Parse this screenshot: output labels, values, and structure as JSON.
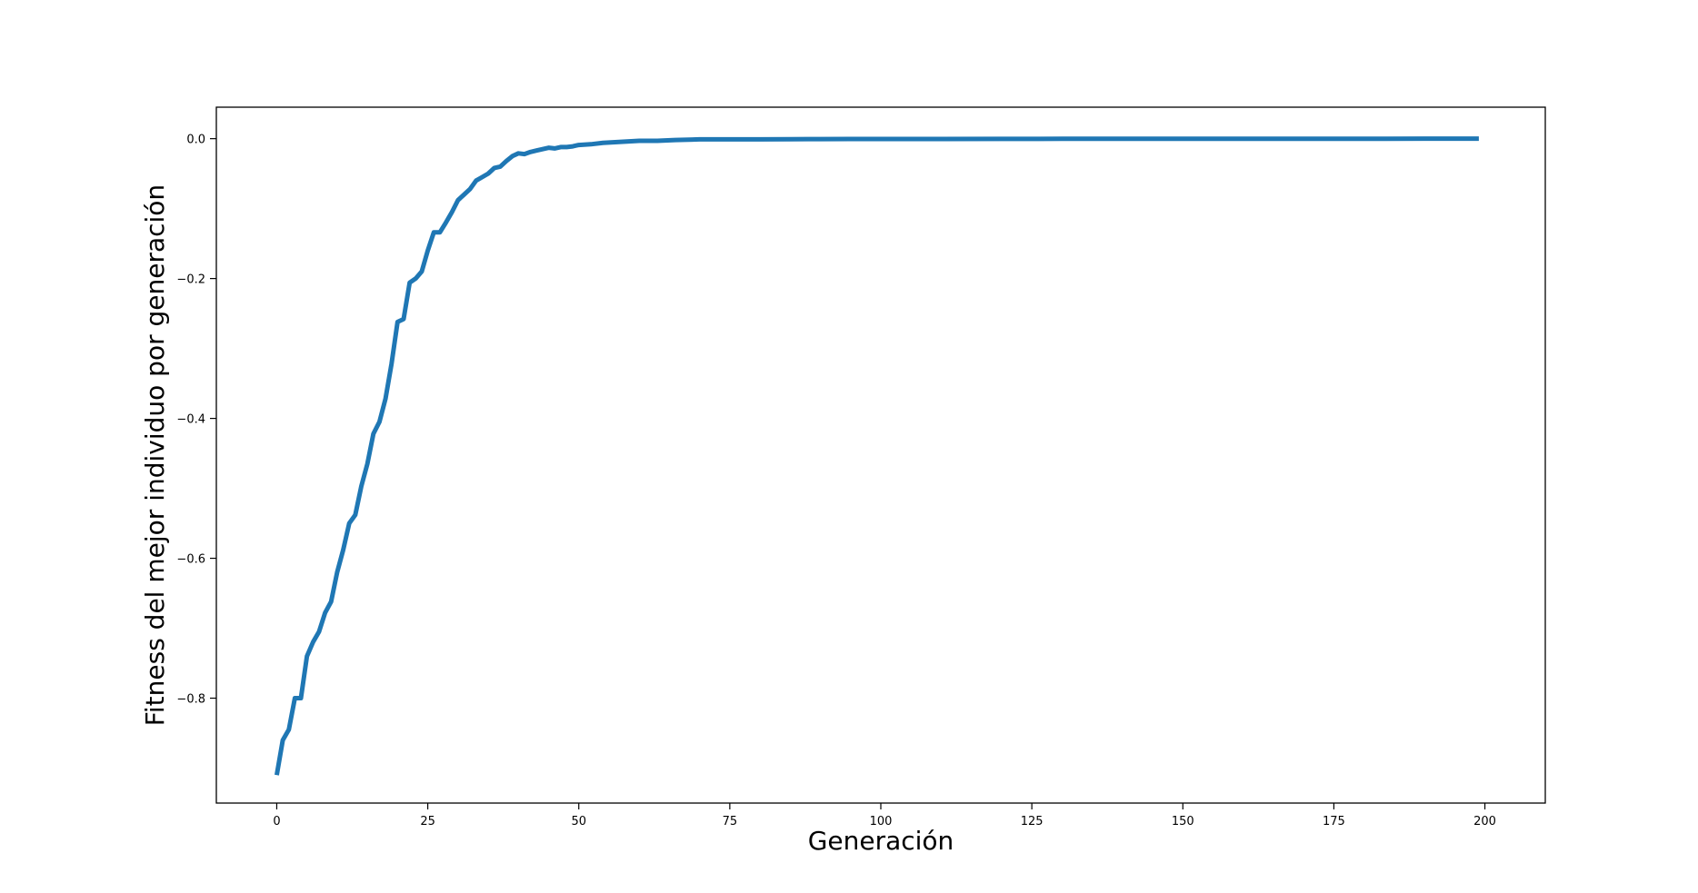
{
  "chart_data": {
    "type": "line",
    "title": "",
    "xlabel": "Generación",
    "ylabel": "Fitness del mejor individuo por generación",
    "xlim": [
      -10,
      210
    ],
    "ylim": [
      -0.95,
      0.045
    ],
    "x_ticks": [
      0,
      25,
      50,
      75,
      100,
      125,
      150,
      175,
      200
    ],
    "y_ticks": [
      0.0,
      -0.2,
      -0.4,
      -0.6,
      -0.8
    ],
    "x_tick_labels": [
      "0",
      "25",
      "50",
      "75",
      "100",
      "125",
      "150",
      "175",
      "200"
    ],
    "y_tick_labels": [
      "0.0",
      "−0.2",
      "−0.4",
      "−0.6",
      "−0.8"
    ],
    "grid": false,
    "legend": "none",
    "series": [
      {
        "color": "#1f77b4",
        "points": [
          [
            0,
            -0.91
          ],
          [
            1,
            -0.86
          ],
          [
            2,
            -0.845
          ],
          [
            3,
            -0.8
          ],
          [
            4,
            -0.8
          ],
          [
            5,
            -0.74
          ],
          [
            6,
            -0.72
          ],
          [
            7,
            -0.705
          ],
          [
            8,
            -0.678
          ],
          [
            9,
            -0.662
          ],
          [
            10,
            -0.62
          ],
          [
            11,
            -0.588
          ],
          [
            12,
            -0.55
          ],
          [
            13,
            -0.538
          ],
          [
            14,
            -0.497
          ],
          [
            15,
            -0.465
          ],
          [
            16,
            -0.422
          ],
          [
            17,
            -0.405
          ],
          [
            18,
            -0.372
          ],
          [
            19,
            -0.322
          ],
          [
            20,
            -0.262
          ],
          [
            21,
            -0.258
          ],
          [
            22,
            -0.206
          ],
          [
            23,
            -0.2
          ],
          [
            24,
            -0.19
          ],
          [
            25,
            -0.16
          ],
          [
            26,
            -0.134
          ],
          [
            27,
            -0.134
          ],
          [
            28,
            -0.12
          ],
          [
            29,
            -0.105
          ],
          [
            30,
            -0.088
          ],
          [
            31,
            -0.08
          ],
          [
            32,
            -0.072
          ],
          [
            33,
            -0.06
          ],
          [
            34,
            -0.055
          ],
          [
            35,
            -0.05
          ],
          [
            36,
            -0.042
          ],
          [
            37,
            -0.04
          ],
          [
            38,
            -0.032
          ],
          [
            39,
            -0.025
          ],
          [
            40,
            -0.021
          ],
          [
            41,
            -0.022
          ],
          [
            42,
            -0.019
          ],
          [
            43,
            -0.017
          ],
          [
            44,
            -0.015
          ],
          [
            45,
            -0.013
          ],
          [
            46,
            -0.014
          ],
          [
            47,
            -0.012
          ],
          [
            48,
            -0.012
          ],
          [
            49,
            -0.011
          ],
          [
            50,
            -0.009
          ],
          [
            52,
            -0.008
          ],
          [
            54,
            -0.006
          ],
          [
            56,
            -0.005
          ],
          [
            58,
            -0.004
          ],
          [
            60,
            -0.003
          ],
          [
            63,
            -0.003
          ],
          [
            66,
            -0.002
          ],
          [
            70,
            -0.001
          ],
          [
            75,
            -0.001
          ],
          [
            80,
            -0.001
          ],
          [
            85,
            -0.0008
          ],
          [
            90,
            -0.0006
          ],
          [
            95,
            -0.0005
          ],
          [
            100,
            -0.0005
          ],
          [
            110,
            -0.0004
          ],
          [
            120,
            -0.0003
          ],
          [
            130,
            -0.0002
          ],
          [
            140,
            -0.0002
          ],
          [
            150,
            -0.0001
          ],
          [
            160,
            -0.0001
          ],
          [
            170,
            -0.0001
          ],
          [
            180,
            -0.0001
          ],
          [
            190,
            0.0
          ],
          [
            199,
            0.0
          ]
        ]
      }
    ]
  }
}
